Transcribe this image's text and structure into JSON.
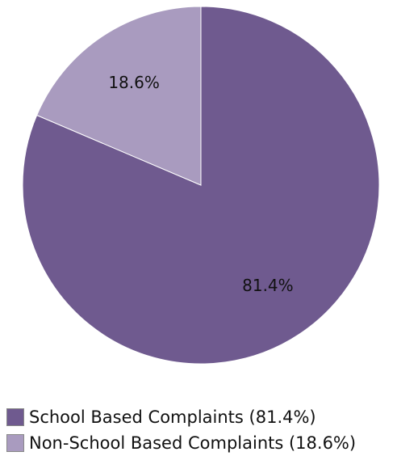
{
  "chart_data": {
    "type": "pie",
    "categories": [
      "School Based Complaints",
      "Non-School Based Complaints"
    ],
    "values": [
      81.4,
      18.6
    ],
    "slice_labels": [
      "81.4%",
      "18.6%"
    ],
    "colors": [
      "#6f5a8f",
      "#a99bbf"
    ],
    "legend": {
      "placement": "bottom-left",
      "entries": [
        "School Based Complaints (81.4%)",
        "Non-School Based Complaints (18.6%)"
      ]
    }
  }
}
